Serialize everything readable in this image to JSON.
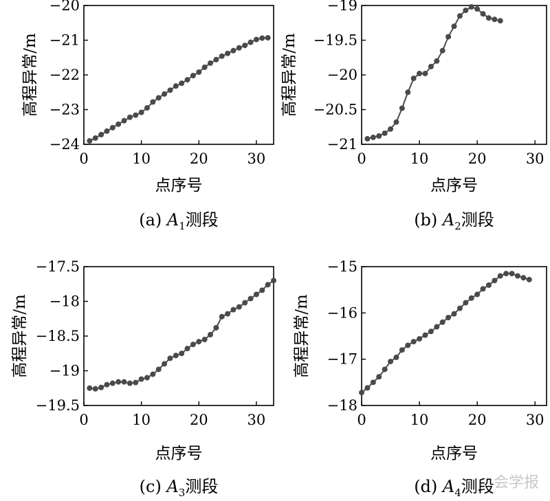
{
  "chart_data": [
    {
      "type": "line",
      "ylabel": "高程异常/m",
      "xlabel": "点序号",
      "caption": {
        "prefix": "(a) ",
        "italic": "A",
        "sub": "1",
        "suffix": "测段"
      },
      "xlim": [
        0,
        33
      ],
      "ylim": [
        -24,
        -20
      ],
      "xticks": [
        "0",
        "10",
        "20",
        "30"
      ],
      "yticks": [
        "−20",
        "−21",
        "−22",
        "−23",
        "−24"
      ],
      "x": [
        1,
        2,
        3,
        4,
        5,
        6,
        7,
        8,
        9,
        10,
        11,
        12,
        13,
        14,
        15,
        16,
        17,
        18,
        19,
        20,
        21,
        22,
        23,
        24,
        25,
        26,
        27,
        28,
        29,
        30,
        31,
        32
      ],
      "y": [
        -23.9,
        -23.82,
        -23.72,
        -23.62,
        -23.52,
        -23.42,
        -23.32,
        -23.22,
        -23.16,
        -23.08,
        -22.95,
        -22.78,
        -22.66,
        -22.55,
        -22.44,
        -22.32,
        -22.24,
        -22.14,
        -22.02,
        -21.92,
        -21.78,
        -21.66,
        -21.56,
        -21.46,
        -21.38,
        -21.3,
        -21.22,
        -21.15,
        -21.06,
        -20.98,
        -20.94,
        -20.93
      ]
    },
    {
      "type": "line",
      "ylabel": "高程异常/m",
      "xlabel": "点序号",
      "caption": {
        "prefix": "(b) ",
        "italic": "A",
        "sub": "2",
        "suffix": "测段"
      },
      "xlim": [
        0,
        32
      ],
      "ylim": [
        -21,
        -19
      ],
      "xticks": [
        "0",
        "10",
        "20",
        "30"
      ],
      "yticks": [
        "−19",
        "−19.5",
        "−20",
        "−20.5",
        "−21"
      ],
      "x": [
        1,
        2,
        3,
        4,
        5,
        6,
        7,
        8,
        9,
        10,
        11,
        12,
        13,
        14,
        15,
        16,
        17,
        18,
        19,
        20,
        21,
        22,
        23,
        24
      ],
      "y": [
        -20.92,
        -20.9,
        -20.88,
        -20.84,
        -20.78,
        -20.68,
        -20.48,
        -20.25,
        -20.05,
        -19.98,
        -19.98,
        -19.88,
        -19.8,
        -19.65,
        -19.45,
        -19.3,
        -19.15,
        -19.07,
        -19.02,
        -19.05,
        -19.12,
        -19.18,
        -19.2,
        -19.22
      ]
    },
    {
      "type": "line",
      "ylabel": "高程异常/m",
      "xlabel": "点序号",
      "caption": {
        "prefix": "(c) ",
        "italic": "A",
        "sub": "3",
        "suffix": "测段"
      },
      "xlim": [
        0,
        33
      ],
      "ylim": [
        -19.5,
        -17.5
      ],
      "xticks": [
        "0",
        "10",
        "20",
        "30"
      ],
      "yticks": [
        "−17.5",
        "−18",
        "−18.5",
        "−19",
        "−19.5"
      ],
      "x": [
        1,
        2,
        3,
        4,
        5,
        6,
        7,
        8,
        9,
        10,
        11,
        12,
        13,
        14,
        15,
        16,
        17,
        18,
        19,
        20,
        21,
        22,
        23,
        24,
        25,
        26,
        27,
        28,
        29,
        30,
        31,
        32,
        33
      ],
      "y": [
        -19.25,
        -19.26,
        -19.24,
        -19.2,
        -19.18,
        -19.16,
        -19.16,
        -19.18,
        -19.17,
        -19.12,
        -19.1,
        -19.05,
        -18.98,
        -18.9,
        -18.82,
        -18.78,
        -18.75,
        -18.68,
        -18.62,
        -18.58,
        -18.55,
        -18.48,
        -18.38,
        -18.22,
        -18.18,
        -18.12,
        -18.08,
        -18.02,
        -17.96,
        -17.9,
        -17.84,
        -17.76,
        -17.7
      ]
    },
    {
      "type": "line",
      "ylabel": "高程异常/m",
      "xlabel": "点序号",
      "caption": {
        "prefix": "(d) ",
        "italic": "A",
        "sub": "4",
        "suffix": "测段"
      },
      "xlim": [
        0,
        32
      ],
      "ylim": [
        -18,
        -15
      ],
      "xticks": [
        "0",
        "10",
        "20",
        "30"
      ],
      "yticks": [
        "−15",
        "−16",
        "−17",
        "−18"
      ],
      "x": [
        0,
        1,
        2,
        3,
        4,
        5,
        6,
        7,
        8,
        9,
        10,
        11,
        12,
        13,
        14,
        15,
        16,
        17,
        18,
        19,
        20,
        21,
        22,
        23,
        24,
        25,
        26,
        27,
        28,
        29
      ],
      "y": [
        -17.72,
        -17.62,
        -17.5,
        -17.38,
        -17.22,
        -17.05,
        -16.96,
        -16.8,
        -16.7,
        -16.62,
        -16.56,
        -16.48,
        -16.4,
        -16.3,
        -16.2,
        -16.1,
        -16.02,
        -15.9,
        -15.78,
        -15.68,
        -15.6,
        -15.48,
        -15.4,
        -15.3,
        -15.2,
        -15.15,
        -15.15,
        -15.2,
        -15.24,
        -15.28
      ]
    }
  ],
  "watermark": "会学报"
}
